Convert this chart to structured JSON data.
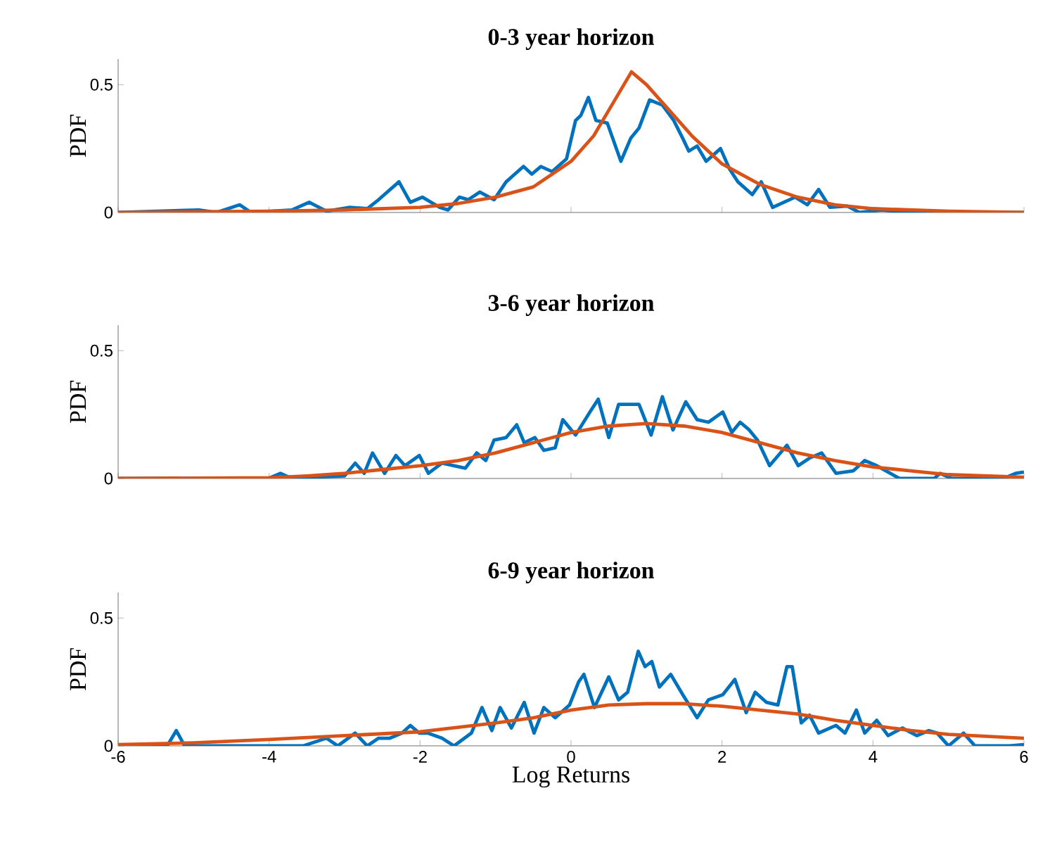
{
  "chart_data": [
    {
      "type": "line",
      "title": "0-3 year horizon",
      "ylabel": "PDF",
      "xlim": [
        -6,
        6
      ],
      "ylim": [
        0,
        0.6
      ],
      "xticks": [
        -6,
        -4,
        -2,
        0,
        2,
        4,
        6
      ],
      "yticks": [
        0,
        0.5
      ],
      "tick_labels": "y",
      "series": [
        {
          "color": "#0072bd",
          "x": [
            -6,
            -4.93,
            -4.7,
            -4.39,
            -4.24,
            -3.7,
            -3.47,
            -3.24,
            -2.93,
            -2.7,
            -2.55,
            -2.28,
            -2.13,
            -1.97,
            -1.74,
            -1.63,
            -1.48,
            -1.36,
            -1.21,
            -1.02,
            -0.86,
            -0.63,
            -0.52,
            -0.4,
            -0.25,
            -0.06,
            0.06,
            0.13,
            0.23,
            0.33,
            0.48,
            0.66,
            0.79,
            0.9,
            1.04,
            1.21,
            1.36,
            1.48,
            1.56,
            1.67,
            1.79,
            1.98,
            2.1,
            2.21,
            2.4,
            2.52,
            2.67,
            2.97,
            3.13,
            3.28,
            3.43,
            3.66,
            3.82,
            4.12,
            4.43,
            5.89,
            6
          ],
          "values": [
            0,
            0.01,
            0,
            0.03,
            0,
            0.01,
            0.04,
            0.005,
            0.02,
            0.015,
            0.05,
            0.12,
            0.04,
            0.06,
            0.02,
            0.01,
            0.06,
            0.05,
            0.08,
            0.05,
            0.12,
            0.18,
            0.15,
            0.18,
            0.16,
            0.21,
            0.36,
            0.38,
            0.45,
            0.36,
            0.35,
            0.2,
            0.29,
            0.33,
            0.44,
            0.42,
            0.36,
            0.29,
            0.24,
            0.26,
            0.2,
            0.25,
            0.17,
            0.12,
            0.07,
            0.12,
            0.02,
            0.06,
            0.03,
            0.09,
            0.02,
            0.025,
            0,
            0.01,
            0,
            0,
            0
          ]
        },
        {
          "color": "#d95319",
          "x": [
            -6,
            -4,
            -3,
            -2,
            -1.5,
            -1,
            -0.5,
            0,
            0.3,
            0.5,
            0.8,
            1.0,
            1.3,
            1.6,
            2.0,
            2.5,
            3,
            3.5,
            4,
            5,
            6
          ],
          "values": [
            0,
            0.005,
            0.01,
            0.02,
            0.035,
            0.06,
            0.1,
            0.2,
            0.3,
            0.4,
            0.55,
            0.5,
            0.4,
            0.3,
            0.19,
            0.11,
            0.06,
            0.03,
            0.015,
            0.005,
            0
          ]
        }
      ]
    },
    {
      "type": "line",
      "title": "3-6 year horizon",
      "ylabel": "PDF",
      "xlim": [
        -6,
        6
      ],
      "ylim": [
        0,
        0.6
      ],
      "xticks": [
        -6,
        -4,
        -2,
        0,
        2,
        4,
        6
      ],
      "yticks": [
        0,
        0.5
      ],
      "tick_labels": "y",
      "series": [
        {
          "color": "#0072bd",
          "x": [
            -6,
            -4.01,
            -3.85,
            -3.7,
            -3.39,
            -3.0,
            -2.86,
            -2.74,
            -2.63,
            -2.47,
            -2.32,
            -2.2,
            -2.01,
            -1.89,
            -1.71,
            -1.55,
            -1.4,
            -1.25,
            -1.13,
            -1.02,
            -0.86,
            -0.72,
            -0.62,
            -0.48,
            -0.36,
            -0.21,
            -0.11,
            0.06,
            0.25,
            0.36,
            0.5,
            0.63,
            0.79,
            0.9,
            1.06,
            1.21,
            1.35,
            1.52,
            1.67,
            1.82,
            2.01,
            2.13,
            2.24,
            2.36,
            2.47,
            2.63,
            2.86,
            3.01,
            3.16,
            3.32,
            3.51,
            3.74,
            3.89,
            4.05,
            4.35,
            4.81,
            4.89,
            5.04,
            5.73,
            5.89,
            6
          ],
          "values": [
            0,
            0,
            0.02,
            0,
            0.005,
            0.01,
            0.06,
            0.02,
            0.1,
            0.02,
            0.09,
            0.05,
            0.09,
            0.02,
            0.06,
            0.05,
            0.04,
            0.1,
            0.07,
            0.15,
            0.16,
            0.21,
            0.14,
            0.16,
            0.11,
            0.12,
            0.23,
            0.17,
            0.26,
            0.31,
            0.16,
            0.29,
            0.29,
            0.29,
            0.17,
            0.32,
            0.19,
            0.3,
            0.23,
            0.22,
            0.26,
            0.18,
            0.22,
            0.19,
            0.15,
            0.05,
            0.13,
            0.05,
            0.08,
            0.1,
            0.02,
            0.03,
            0.07,
            0.05,
            0,
            0,
            0.02,
            0,
            0,
            0.02,
            0.025
          ]
        },
        {
          "color": "#d95319",
          "x": [
            -6,
            -4,
            -3.5,
            -3,
            -2.5,
            -2,
            -1.5,
            -1,
            -0.5,
            0,
            0.5,
            1,
            1.5,
            2,
            2.5,
            3,
            3.5,
            4,
            4.5,
            5,
            6
          ],
          "values": [
            0,
            0.003,
            0.01,
            0.02,
            0.035,
            0.05,
            0.07,
            0.1,
            0.14,
            0.18,
            0.205,
            0.215,
            0.205,
            0.18,
            0.14,
            0.1,
            0.07,
            0.045,
            0.03,
            0.015,
            0.005
          ]
        }
      ]
    },
    {
      "type": "line",
      "title": "6-9 year horizon",
      "ylabel": "PDF",
      "xlabel": "Log Returns",
      "xlim": [
        -6,
        6
      ],
      "ylim": [
        0,
        0.6
      ],
      "xticks": [
        -6,
        -4,
        -2,
        0,
        2,
        4,
        6
      ],
      "yticks": [
        0,
        0.5
      ],
      "series": [
        {
          "color": "#0072bd",
          "x": [
            -6,
            -5.35,
            -5.23,
            -5.12,
            -3.55,
            -3.24,
            -3.09,
            -2.86,
            -2.7,
            -2.55,
            -2.4,
            -2.24,
            -2.13,
            -2.01,
            -1.9,
            -1.71,
            -1.55,
            -1.32,
            -1.18,
            -1.05,
            -0.94,
            -0.79,
            -0.62,
            -0.49,
            -0.36,
            -0.21,
            -0.02,
            0.1,
            0.17,
            0.31,
            0.5,
            0.63,
            0.75,
            0.89,
            0.98,
            1.07,
            1.17,
            1.32,
            1.48,
            1.67,
            1.82,
            2.01,
            2.17,
            2.32,
            2.44,
            2.59,
            2.74,
            2.86,
            2.93,
            3.05,
            3.16,
            3.28,
            3.51,
            3.63,
            3.78,
            3.89,
            4.05,
            4.2,
            4.39,
            4.58,
            4.74,
            4.85,
            5.0,
            5.2,
            5.35,
            5.81,
            6
          ],
          "values": [
            0,
            0,
            0.06,
            0,
            0,
            0.03,
            0,
            0.05,
            0,
            0.03,
            0.03,
            0.05,
            0.08,
            0.05,
            0.05,
            0.03,
            0,
            0.05,
            0.15,
            0.06,
            0.15,
            0.07,
            0.17,
            0.05,
            0.15,
            0.11,
            0.16,
            0.25,
            0.28,
            0.15,
            0.27,
            0.18,
            0.21,
            0.37,
            0.31,
            0.33,
            0.23,
            0.28,
            0.2,
            0.11,
            0.18,
            0.2,
            0.26,
            0.13,
            0.21,
            0.17,
            0.16,
            0.31,
            0.31,
            0.09,
            0.12,
            0.05,
            0.08,
            0.05,
            0.14,
            0.05,
            0.1,
            0.04,
            0.07,
            0.04,
            0.06,
            0.05,
            0,
            0.05,
            0,
            0,
            0.005
          ]
        },
        {
          "color": "#d95319",
          "x": [
            -6,
            -5,
            -4,
            -3,
            -2,
            -1,
            -0.5,
            0,
            0.5,
            1,
            1.5,
            2,
            2.5,
            3,
            3.5,
            4,
            4.5,
            5,
            6
          ],
          "values": [
            0.005,
            0.012,
            0.025,
            0.04,
            0.055,
            0.09,
            0.11,
            0.14,
            0.16,
            0.165,
            0.165,
            0.155,
            0.14,
            0.125,
            0.1,
            0.08,
            0.06,
            0.045,
            0.03
          ]
        }
      ]
    }
  ]
}
